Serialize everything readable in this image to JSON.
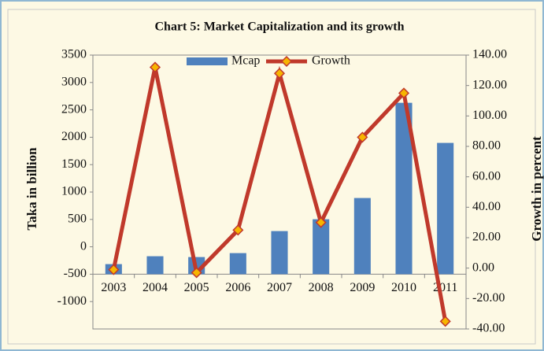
{
  "chart_data": {
    "type": "bar-line",
    "title": "Chart 5: Market Capitalization and its growth",
    "y_label": "Taka in billion",
    "y2_label": "Growth in percent",
    "categories": [
      "2003",
      "2004",
      "2005",
      "2006",
      "2007",
      "2008",
      "2009",
      "2010",
      "2011"
    ],
    "series": [
      {
        "name": "Mcap",
        "type": "bar",
        "color": "#4f81bd",
        "values": [
          -316,
          -172,
          -187,
          -115,
          287,
          503,
          891,
          2629,
          1897
        ]
      },
      {
        "name": "Growth",
        "type": "line",
        "axis": "y2",
        "color": "#c0392b",
        "marker_color": "#f7b500",
        "values": [
          -1,
          132,
          -3,
          25,
          128,
          30,
          86,
          115,
          -35
        ]
      }
    ],
    "ylim": [
      -1500,
      3500
    ],
    "yticks": [
      -1000,
      -500,
      0,
      500,
      1000,
      1500,
      2000,
      2500,
      3000,
      3500
    ],
    "category_axis_value": -500,
    "y2lim": [
      -40,
      140
    ],
    "y2ticks": [
      {
        "value": -40,
        "label": "-40.00"
      },
      {
        "value": -20,
        "label": "-20.00"
      },
      {
        "value": 0,
        "label": "0.00"
      },
      {
        "value": 20,
        "label": "20.00"
      },
      {
        "value": 40,
        "label": "40.00"
      },
      {
        "value": 60,
        "label": "60.00"
      },
      {
        "value": 80,
        "label": "80.00"
      },
      {
        "value": 100,
        "label": "100.00"
      },
      {
        "value": 120,
        "label": "120.00"
      },
      {
        "value": 140,
        "label": "140.00"
      }
    ],
    "legend": "top"
  }
}
